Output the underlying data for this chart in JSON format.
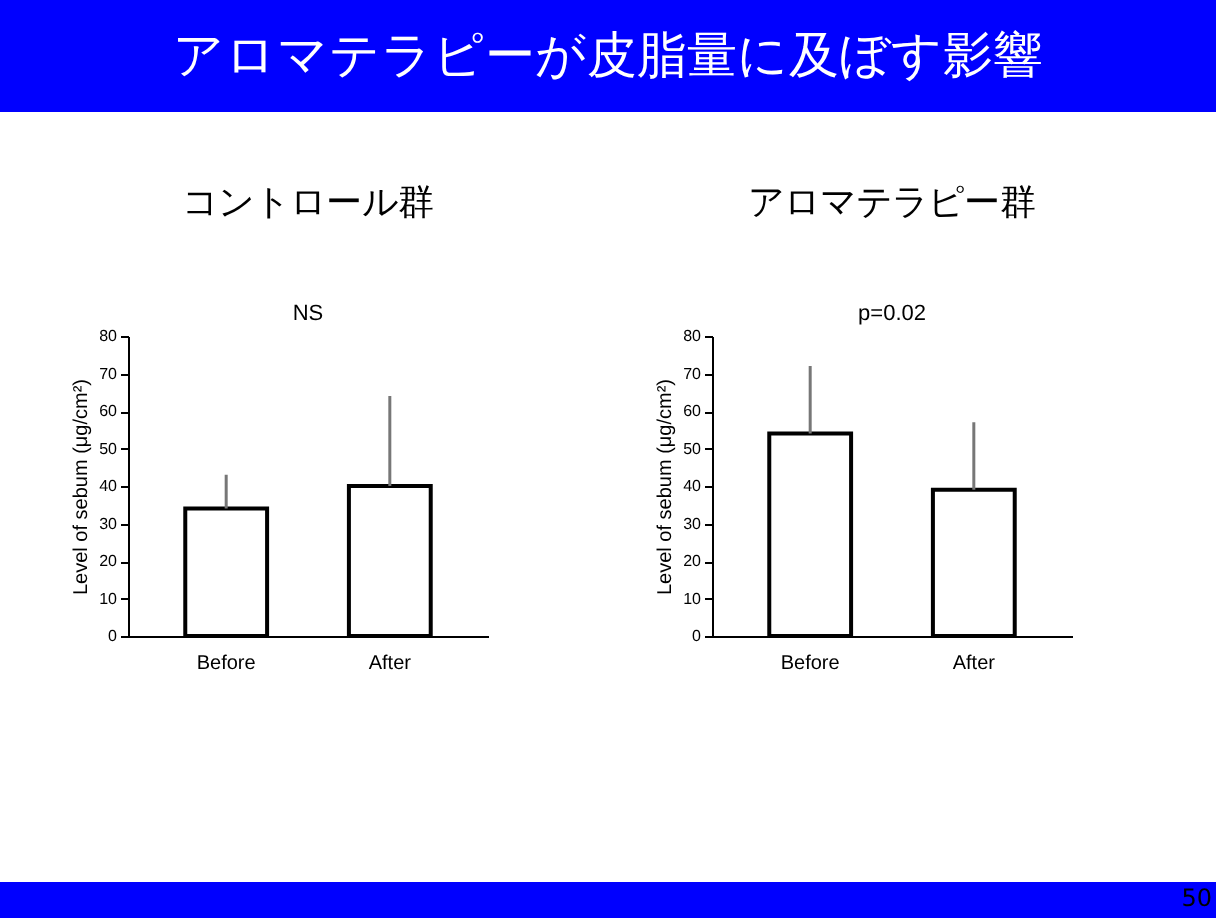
{
  "chart_data": [
    {
      "type": "bar",
      "title": "コントロール群",
      "categories": [
        "Before",
        "After"
      ],
      "values": [
        34,
        40
      ],
      "color": "#ffffff",
      "errors": [
        [
          34,
          43
        ],
        [
          40,
          64
        ]
      ],
      "ylabel": "Level of sebum (μg/cm²)",
      "ylim": [
        0,
        80
      ],
      "yticks": [
        0,
        10,
        20,
        30,
        40,
        50,
        60,
        70,
        80
      ],
      "annotations": [
        "アロマテラピーが皮脂量に及ぼす影響",
        "NS"
      ]
    },
    {
      "type": "bar",
      "title": "アロマテラピー群",
      "categories": [
        "Before",
        "After"
      ],
      "values": [
        54,
        39
      ],
      "color": "#ffffff",
      "errors": [
        [
          54,
          72
        ],
        [
          39,
          57
        ]
      ],
      "ylabel": "Level of sebum (μg/cm²)",
      "ylim": [
        0,
        80
      ],
      "yticks": [
        0,
        10,
        20,
        30,
        40,
        50,
        60,
        70,
        80
      ],
      "annotations": [
        "p=0.02",
        "50"
      ]
    }
  ]
}
